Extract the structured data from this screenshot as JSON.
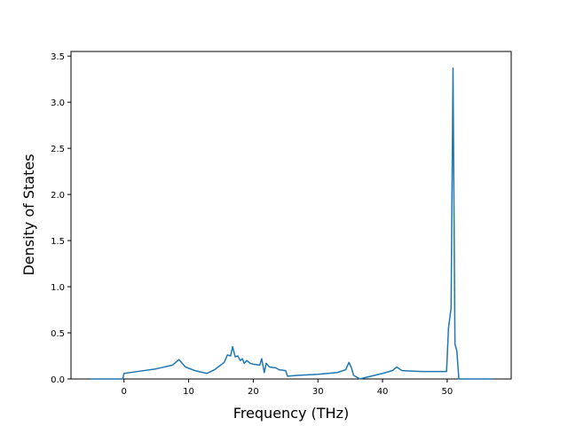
{
  "chart_data": {
    "type": "line",
    "x_label": "Frequency (THz)",
    "y_label": "Density of States",
    "xlim": [
      -8.2,
      59.9
    ],
    "ylim": [
      0,
      3.55
    ],
    "xticks": [
      0,
      10,
      20,
      30,
      40,
      50
    ],
    "yticks": [
      {
        "value": 0,
        "label": "0.0"
      },
      0.5,
      {
        "value": 1,
        "label": "1.0"
      },
      1.5,
      {
        "value": 2,
        "label": "2.0"
      },
      2.5,
      {
        "value": 3,
        "label": "3.0"
      },
      3.5
    ],
    "series": [
      {
        "color": "#1f77b4",
        "x": [
          -5.2,
          -0.2,
          0,
          2,
          5,
          7.5,
          8.5,
          9.5,
          11,
          12.8,
          14,
          15.5,
          16,
          16.5,
          16.8,
          17.2,
          17.6,
          18,
          18.3,
          18.6,
          19,
          19.5,
          20,
          21,
          21.3,
          21.7,
          22,
          22.5,
          23.5,
          24,
          25,
          25.3,
          27,
          30,
          33,
          34.3,
          34.8,
          35.2,
          35.5,
          36.5,
          37,
          40,
          41.5,
          42.2,
          43,
          46,
          49.9,
          50.2,
          50.6,
          50.9,
          51.2,
          51.5,
          51.8,
          57
        ],
        "values": [
          0,
          0,
          0.06,
          0.08,
          0.11,
          0.15,
          0.21,
          0.13,
          0.09,
          0.06,
          0.1,
          0.18,
          0.26,
          0.25,
          0.35,
          0.24,
          0.25,
          0.2,
          0.22,
          0.17,
          0.2,
          0.17,
          0.16,
          0.15,
          0.22,
          0.07,
          0.17,
          0.13,
          0.12,
          0.1,
          0.09,
          0.03,
          0.04,
          0.05,
          0.07,
          0.1,
          0.18,
          0.12,
          0.04,
          0,
          0.01,
          0.06,
          0.09,
          0.13,
          0.09,
          0.08,
          0.08,
          0.55,
          0.77,
          3.37,
          0.38,
          0.3,
          0,
          0
        ]
      }
    ]
  }
}
